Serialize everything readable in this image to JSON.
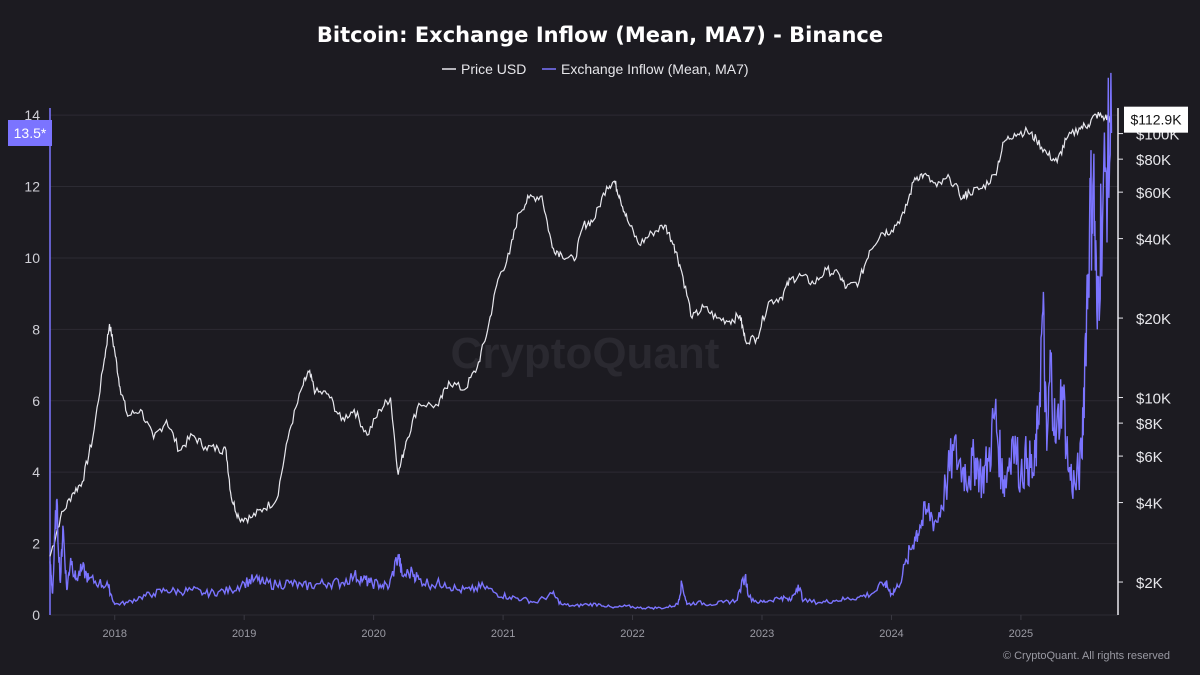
{
  "chart_data": {
    "type": "line",
    "title": "Bitcoin: Exchange Inflow (Mean, MA7) - Binance",
    "legend": [
      {
        "name": "Price USD",
        "color": "#e8e8ee"
      },
      {
        "name": "Exchange Inflow (Mean, MA7)",
        "color": "#7b74ff"
      }
    ],
    "x_range": [
      2017.5,
      2025.75
    ],
    "x_ticks": [
      {
        "label": "2018",
        "value": 2018
      },
      {
        "label": "2019",
        "value": 2019
      },
      {
        "label": "2020",
        "value": 2020
      },
      {
        "label": "2021",
        "value": 2021
      },
      {
        "label": "2022",
        "value": 2022
      },
      {
        "label": "2023",
        "value": 2023
      },
      {
        "label": "2024",
        "value": 2024
      },
      {
        "label": "2025",
        "value": 2025
      }
    ],
    "left_axis": {
      "name": "Exchange Inflow (Mean, MA7)",
      "range": [
        0,
        14.2
      ],
      "ticks": [
        "0",
        "2",
        "4",
        "6",
        "8",
        "10",
        "12",
        "14"
      ],
      "current_label": "13.5*",
      "current_value": 13.5
    },
    "right_axis": {
      "name": "Price USD",
      "scale": "log",
      "range": [
        1500,
        125000
      ],
      "ticks": [
        {
          "label": "$2K",
          "value": 2000
        },
        {
          "label": "$4K",
          "value": 4000
        },
        {
          "label": "$6K",
          "value": 6000
        },
        {
          "label": "$8K",
          "value": 8000
        },
        {
          "label": "$10K",
          "value": 10000
        },
        {
          "label": "$20K",
          "value": 20000
        },
        {
          "label": "$40K",
          "value": 40000
        },
        {
          "label": "$60K",
          "value": 60000
        },
        {
          "label": "$80K",
          "value": 80000
        },
        {
          "label": "$100K",
          "value": 100000
        }
      ],
      "current_label": "$112.9K",
      "current_value": 112900
    },
    "series": [
      {
        "name": "Price USD",
        "axis": "right",
        "points": [
          [
            2017.5,
            2500
          ],
          [
            2017.58,
            3500
          ],
          [
            2017.67,
            4300
          ],
          [
            2017.75,
            4800
          ],
          [
            2017.83,
            7000
          ],
          [
            2017.92,
            14000
          ],
          [
            2017.96,
            19000
          ],
          [
            2018.0,
            15000
          ],
          [
            2018.04,
            11000
          ],
          [
            2018.1,
            8500
          ],
          [
            2018.2,
            9000
          ],
          [
            2018.3,
            7000
          ],
          [
            2018.4,
            8200
          ],
          [
            2018.5,
            6300
          ],
          [
            2018.6,
            7200
          ],
          [
            2018.7,
            6500
          ],
          [
            2018.8,
            6400
          ],
          [
            2018.86,
            6300
          ],
          [
            2018.9,
            4200
          ],
          [
            2018.96,
            3500
          ],
          [
            2019.05,
            3500
          ],
          [
            2019.15,
            3800
          ],
          [
            2019.25,
            4100
          ],
          [
            2019.35,
            7500
          ],
          [
            2019.45,
            11000
          ],
          [
            2019.5,
            12500
          ],
          [
            2019.55,
            10500
          ],
          [
            2019.65,
            10300
          ],
          [
            2019.75,
            8200
          ],
          [
            2019.85,
            9000
          ],
          [
            2019.95,
            7200
          ],
          [
            2020.05,
            9000
          ],
          [
            2020.13,
            10000
          ],
          [
            2020.19,
            5100
          ],
          [
            2020.25,
            6800
          ],
          [
            2020.35,
            9500
          ],
          [
            2020.5,
            9300
          ],
          [
            2020.58,
            11500
          ],
          [
            2020.7,
            10700
          ],
          [
            2020.8,
            13000
          ],
          [
            2020.88,
            18000
          ],
          [
            2020.96,
            28000
          ],
          [
            2021.05,
            35000
          ],
          [
            2021.12,
            50000
          ],
          [
            2021.2,
            57000
          ],
          [
            2021.3,
            58000
          ],
          [
            2021.38,
            37000
          ],
          [
            2021.45,
            35000
          ],
          [
            2021.55,
            33000
          ],
          [
            2021.62,
            45000
          ],
          [
            2021.7,
            47000
          ],
          [
            2021.8,
            63000
          ],
          [
            2021.86,
            66000
          ],
          [
            2021.9,
            58000
          ],
          [
            2021.96,
            47000
          ],
          [
            2022.05,
            38000
          ],
          [
            2022.15,
            42000
          ],
          [
            2022.25,
            45000
          ],
          [
            2022.32,
            38000
          ],
          [
            2022.38,
            30000
          ],
          [
            2022.46,
            20000
          ],
          [
            2022.55,
            22000
          ],
          [
            2022.65,
            20000
          ],
          [
            2022.75,
            19500
          ],
          [
            2022.83,
            20500
          ],
          [
            2022.87,
            16500
          ],
          [
            2022.96,
            16800
          ],
          [
            2023.05,
            23000
          ],
          [
            2023.15,
            24000
          ],
          [
            2023.22,
            28000
          ],
          [
            2023.3,
            29000
          ],
          [
            2023.4,
            27000
          ],
          [
            2023.5,
            30500
          ],
          [
            2023.6,
            29000
          ],
          [
            2023.65,
            26000
          ],
          [
            2023.75,
            27500
          ],
          [
            2023.83,
            36000
          ],
          [
            2023.92,
            42000
          ],
          [
            2024.0,
            43000
          ],
          [
            2024.1,
            50000
          ],
          [
            2024.18,
            68000
          ],
          [
            2024.25,
            70000
          ],
          [
            2024.35,
            63000
          ],
          [
            2024.45,
            68000
          ],
          [
            2024.55,
            57000
          ],
          [
            2024.6,
            60000
          ],
          [
            2024.7,
            62000
          ],
          [
            2024.8,
            70000
          ],
          [
            2024.87,
            93000
          ],
          [
            2024.95,
            100000
          ],
          [
            2025.05,
            102000
          ],
          [
            2025.12,
            95000
          ],
          [
            2025.2,
            84000
          ],
          [
            2025.28,
            78000
          ],
          [
            2025.35,
            95000
          ],
          [
            2025.45,
            105000
          ],
          [
            2025.52,
            108000
          ],
          [
            2025.58,
            118000
          ],
          [
            2025.65,
            115000
          ],
          [
            2025.7,
            112900
          ]
        ]
      },
      {
        "name": "Exchange Inflow (Mean, MA7)",
        "axis": "left",
        "points": [
          [
            2017.5,
            1.5
          ],
          [
            2017.52,
            0.6
          ],
          [
            2017.55,
            3.2
          ],
          [
            2017.58,
            0.9
          ],
          [
            2017.6,
            2.5
          ],
          [
            2017.63,
            0.7
          ],
          [
            2017.66,
            1.6
          ],
          [
            2017.7,
            1.0
          ],
          [
            2017.75,
            1.3
          ],
          [
            2017.8,
            1.0
          ],
          [
            2017.88,
            0.9
          ],
          [
            2017.95,
            0.8
          ],
          [
            2018.0,
            0.3
          ],
          [
            2018.1,
            0.35
          ],
          [
            2018.2,
            0.5
          ],
          [
            2018.3,
            0.6
          ],
          [
            2018.4,
            0.7
          ],
          [
            2018.5,
            0.65
          ],
          [
            2018.6,
            0.7
          ],
          [
            2018.7,
            0.6
          ],
          [
            2018.8,
            0.65
          ],
          [
            2018.9,
            0.7
          ],
          [
            2019.0,
            0.9
          ],
          [
            2019.08,
            1.0
          ],
          [
            2019.15,
            0.9
          ],
          [
            2019.25,
            0.85
          ],
          [
            2019.35,
            0.9
          ],
          [
            2019.45,
            0.8
          ],
          [
            2019.55,
            0.85
          ],
          [
            2019.65,
            0.9
          ],
          [
            2019.75,
            0.9
          ],
          [
            2019.85,
            1.1
          ],
          [
            2019.92,
            1.0
          ],
          [
            2019.97,
            0.9
          ],
          [
            2020.05,
            0.85
          ],
          [
            2020.12,
            0.8
          ],
          [
            2020.19,
            1.7
          ],
          [
            2020.22,
            1.1
          ],
          [
            2020.3,
            1.2
          ],
          [
            2020.35,
            1.0
          ],
          [
            2020.45,
            0.85
          ],
          [
            2020.55,
            0.9
          ],
          [
            2020.65,
            0.7
          ],
          [
            2020.75,
            0.7
          ],
          [
            2020.85,
            0.8
          ],
          [
            2020.95,
            0.6
          ],
          [
            2021.05,
            0.5
          ],
          [
            2021.15,
            0.45
          ],
          [
            2021.25,
            0.35
          ],
          [
            2021.38,
            0.6
          ],
          [
            2021.45,
            0.3
          ],
          [
            2021.55,
            0.25
          ],
          [
            2021.65,
            0.3
          ],
          [
            2021.75,
            0.3
          ],
          [
            2021.85,
            0.2
          ],
          [
            2021.95,
            0.25
          ],
          [
            2022.05,
            0.2
          ],
          [
            2022.15,
            0.2
          ],
          [
            2022.25,
            0.2
          ],
          [
            2022.35,
            0.3
          ],
          [
            2022.38,
            0.9
          ],
          [
            2022.42,
            0.3
          ],
          [
            2022.5,
            0.35
          ],
          [
            2022.6,
            0.3
          ],
          [
            2022.7,
            0.35
          ],
          [
            2022.8,
            0.4
          ],
          [
            2022.87,
            1.1
          ],
          [
            2022.9,
            0.5
          ],
          [
            2022.98,
            0.35
          ],
          [
            2023.05,
            0.4
          ],
          [
            2023.15,
            0.5
          ],
          [
            2023.22,
            0.4
          ],
          [
            2023.28,
            0.85
          ],
          [
            2023.32,
            0.4
          ],
          [
            2023.45,
            0.35
          ],
          [
            2023.55,
            0.4
          ],
          [
            2023.65,
            0.45
          ],
          [
            2023.75,
            0.5
          ],
          [
            2023.85,
            0.6
          ],
          [
            2023.95,
            0.9
          ],
          [
            2024.0,
            0.6
          ],
          [
            2024.05,
            0.8
          ],
          [
            2024.12,
            1.5
          ],
          [
            2024.18,
            2.2
          ],
          [
            2024.22,
            2.5
          ],
          [
            2024.28,
            2.9
          ],
          [
            2024.35,
            2.6
          ],
          [
            2024.42,
            3.6
          ],
          [
            2024.48,
            4.6
          ],
          [
            2024.55,
            4.1
          ],
          [
            2024.6,
            3.9
          ],
          [
            2024.65,
            4.4
          ],
          [
            2024.7,
            3.8
          ],
          [
            2024.75,
            4.3
          ],
          [
            2024.8,
            5.7
          ],
          [
            2024.85,
            4.0
          ],
          [
            2024.88,
            3.7
          ],
          [
            2024.93,
            4.9
          ],
          [
            2025.0,
            4.0
          ],
          [
            2025.05,
            4.4
          ],
          [
            2025.1,
            3.9
          ],
          [
            2025.13,
            5.2
          ],
          [
            2025.17,
            8.5
          ],
          [
            2025.2,
            4.6
          ],
          [
            2025.23,
            7.1
          ],
          [
            2025.27,
            4.8
          ],
          [
            2025.32,
            6.4
          ],
          [
            2025.37,
            4.0
          ],
          [
            2025.42,
            3.6
          ],
          [
            2025.47,
            4.4
          ],
          [
            2025.5,
            7.9
          ],
          [
            2025.53,
            10.8
          ],
          [
            2025.56,
            12.3
          ],
          [
            2025.59,
            8.0
          ],
          [
            2025.62,
            11.2
          ],
          [
            2025.66,
            12.4
          ],
          [
            2025.7,
            13.5
          ]
        ]
      }
    ]
  },
  "watermark": "CryptoQuant",
  "copyright": "© CryptoQuant. All rights reserved",
  "colors": {
    "background": "#1c1b21",
    "price": "#e8e8ee",
    "inflow": "#7b74ff",
    "badge": "#7b74ff"
  }
}
